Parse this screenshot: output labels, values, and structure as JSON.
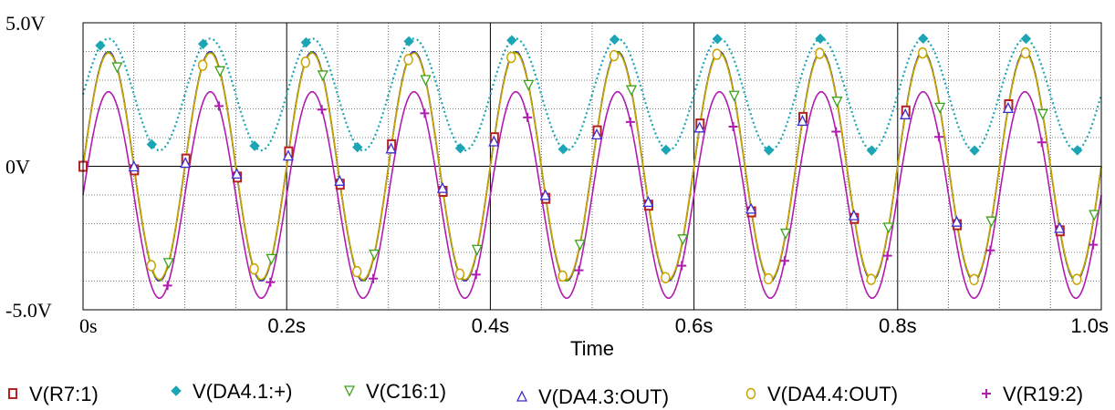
{
  "chart_data": {
    "type": "line",
    "xlabel": "Time",
    "ylabel": "",
    "xlim": [
      0,
      1.0
    ],
    "ylim": [
      -5.0,
      5.0
    ],
    "x_ticks": [
      {
        "value": 0.0,
        "label": "0s"
      },
      {
        "value": 0.2,
        "label": "0.2s"
      },
      {
        "value": 0.4,
        "label": "0.4s"
      },
      {
        "value": 0.6,
        "label": "0.6s"
      },
      {
        "value": 0.8,
        "label": "0.8s"
      },
      {
        "value": 1.0,
        "label": "1.0s"
      }
    ],
    "y_ticks": [
      {
        "value": 5.0,
        "label": "5.0V"
      },
      {
        "value": 0.0,
        "label": "0V"
      },
      {
        "value": -5.0,
        "label": "-5.0V"
      }
    ],
    "grid": true,
    "legend_position": "bottom",
    "series": [
      {
        "name": "V(R7:1)",
        "color": "#b22222",
        "marker": "square",
        "marker_name": "square-marker",
        "line_style": "solid",
        "offset": 0.0,
        "amplitude": 4.0,
        "frequency_hz": 10,
        "phase_deg": 0
      },
      {
        "name": "V(DA4.1:+)",
        "color": "#1ba5b5",
        "marker": "diamond",
        "marker_name": "diamond-marker",
        "line_style": "dotted",
        "offset": 2.5,
        "amplitude": 1.95,
        "frequency_hz": 10,
        "phase_deg": 0
      },
      {
        "name": "V(C16:1)",
        "color": "#3aa31a",
        "marker": "triangle-down",
        "marker_name": "triangle-down-marker",
        "line_style": "solid",
        "offset": 0.0,
        "amplitude": 4.0,
        "frequency_hz": 10,
        "phase_deg": 0
      },
      {
        "name": "V(DA4.3:OUT)",
        "color": "#3b2bd1",
        "marker": "triangle-up",
        "marker_name": "triangle-up-marker",
        "line_style": "dashed",
        "offset": 0.0,
        "amplitude": 4.0,
        "frequency_hz": 10,
        "phase_deg": 0
      },
      {
        "name": "V(DA4.4:OUT)",
        "color": "#c8a400",
        "marker": "circle",
        "marker_name": "circle-marker",
        "line_style": "solid",
        "offset": 0.0,
        "amplitude": 3.95,
        "frequency_hz": 10,
        "phase_deg": 0
      },
      {
        "name": "V(R19:2)",
        "color": "#b01cb0",
        "marker": "plus",
        "marker_name": "plus-marker",
        "line_style": "solid",
        "offset": -1.0,
        "amplitude": 3.6,
        "frequency_hz": 10,
        "phase_deg": 0
      }
    ]
  }
}
